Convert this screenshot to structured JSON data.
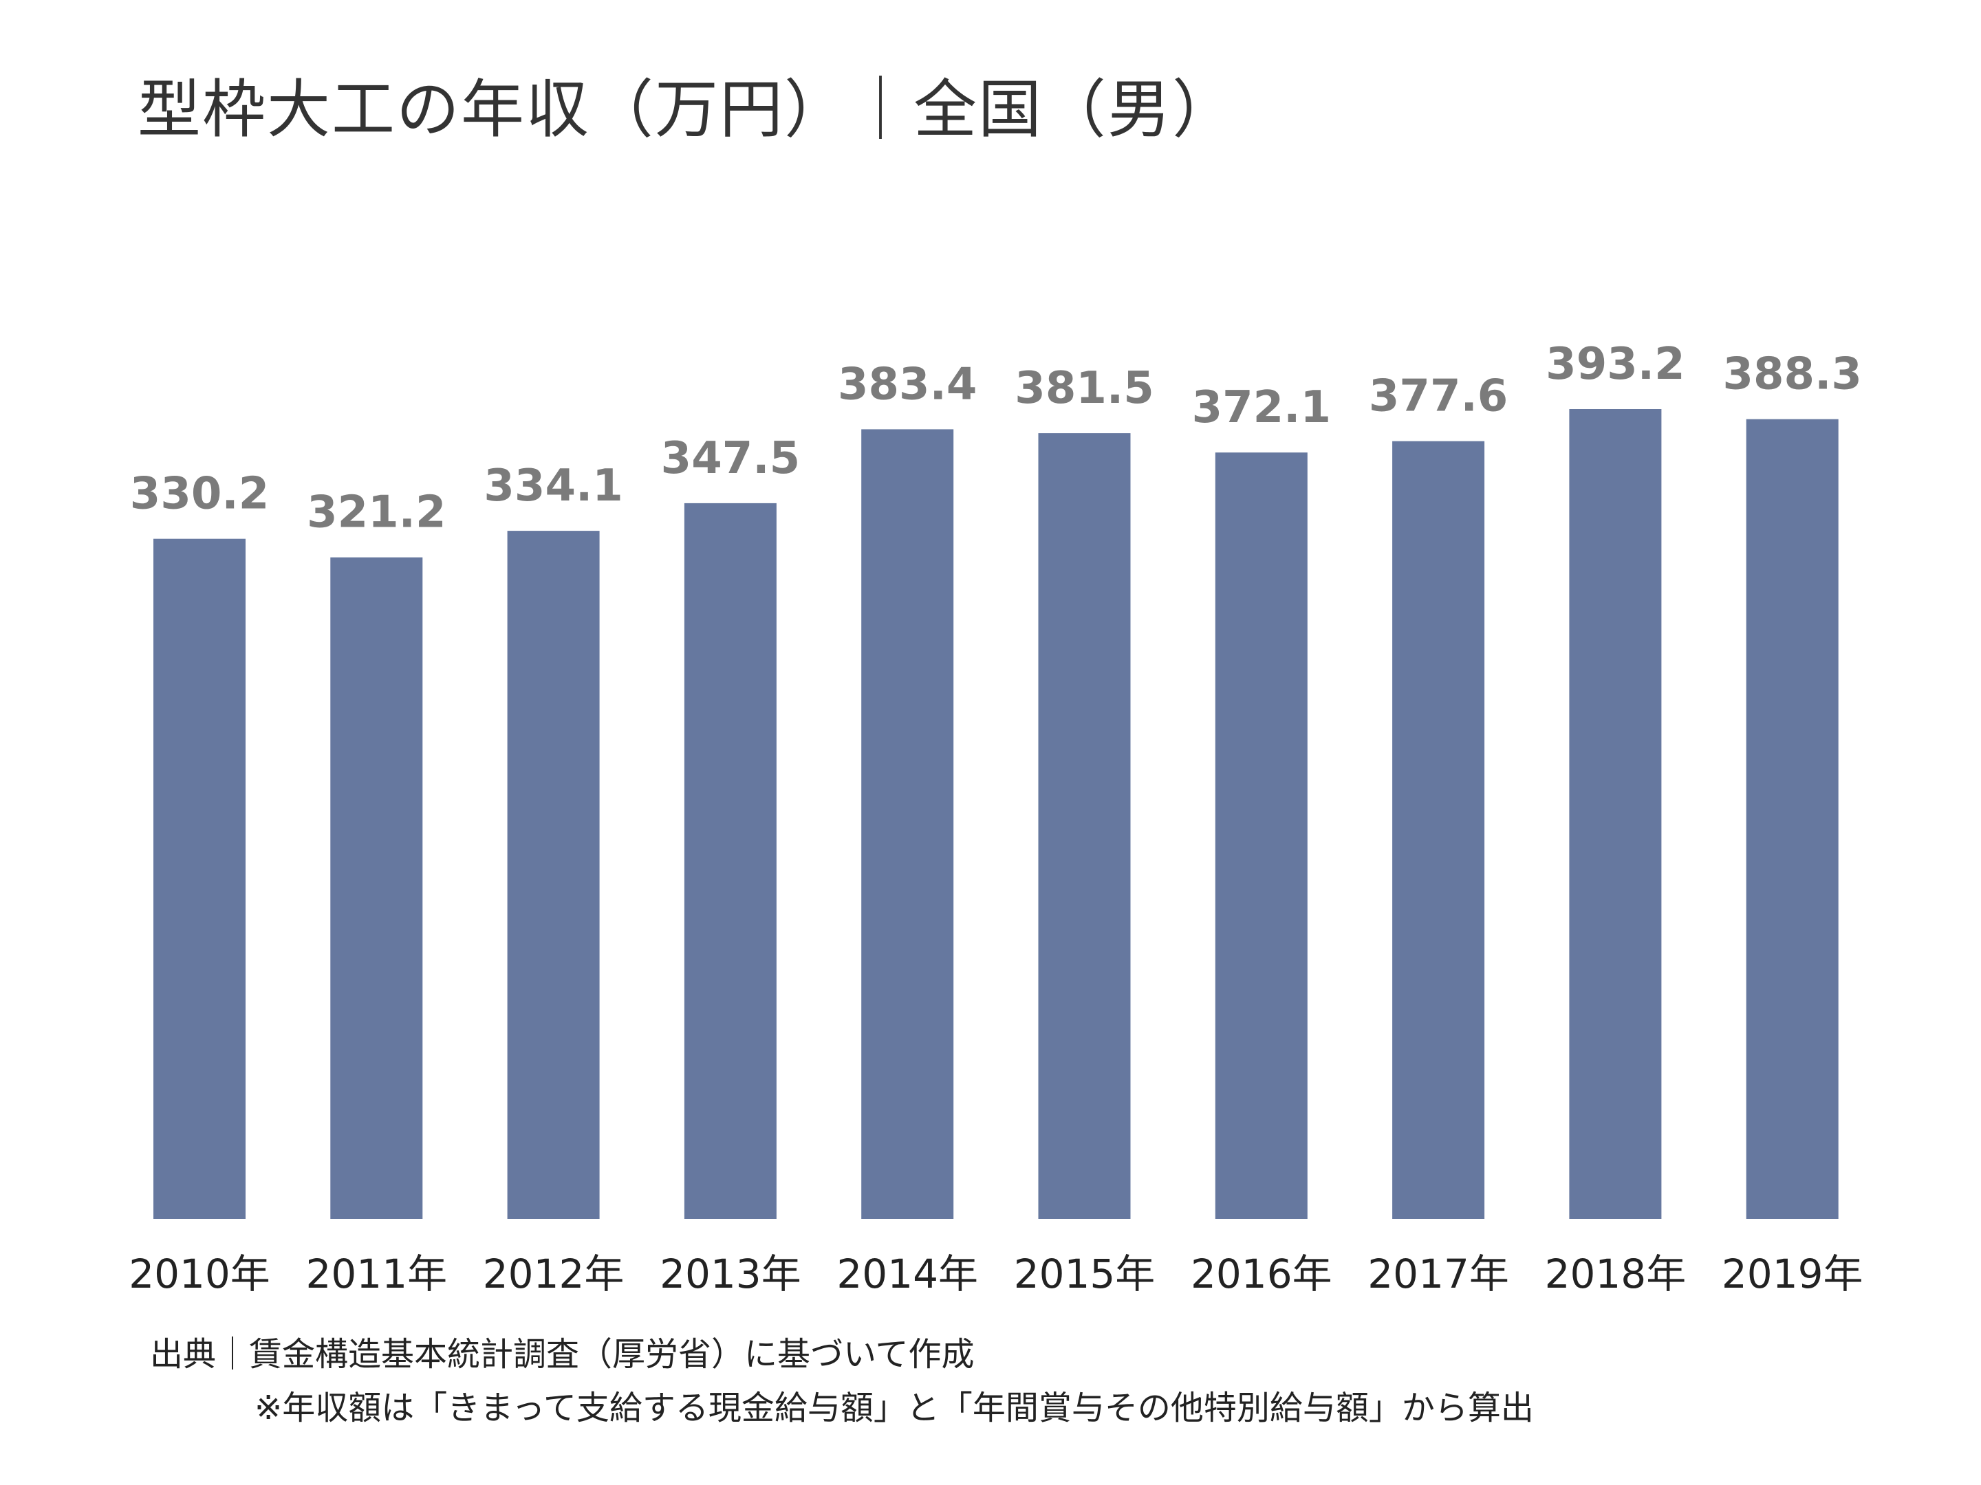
{
  "chart_data": {
    "type": "bar",
    "title": "型枠大工の年収（万円）｜全国（男）",
    "categories": [
      "2010年",
      "2011年",
      "2012年",
      "2013年",
      "2014年",
      "2015年",
      "2016年",
      "2017年",
      "2018年",
      "2019年"
    ],
    "values": [
      330.2,
      321.2,
      334.1,
      347.5,
      383.4,
      381.5,
      372.1,
      377.6,
      393.2,
      388.3
    ],
    "value_labels": [
      "330.2",
      "321.2",
      "334.1",
      "347.5",
      "383.4",
      "381.5",
      "372.1",
      "377.6",
      "393.2",
      "388.3"
    ],
    "xlabel": "",
    "ylabel": "",
    "ylim": [
      0,
      393.2
    ],
    "grid": false,
    "legend": "none",
    "bar_color": "#66789f",
    "label_color": "#7b7b7b"
  },
  "footer": {
    "source": "出典｜賃金構造基本統計調査（厚労省）に基づいて作成",
    "note": "※年収額は「きまって支給する現金給与額」と「年間賞与その他特別給与額」から算出"
  }
}
